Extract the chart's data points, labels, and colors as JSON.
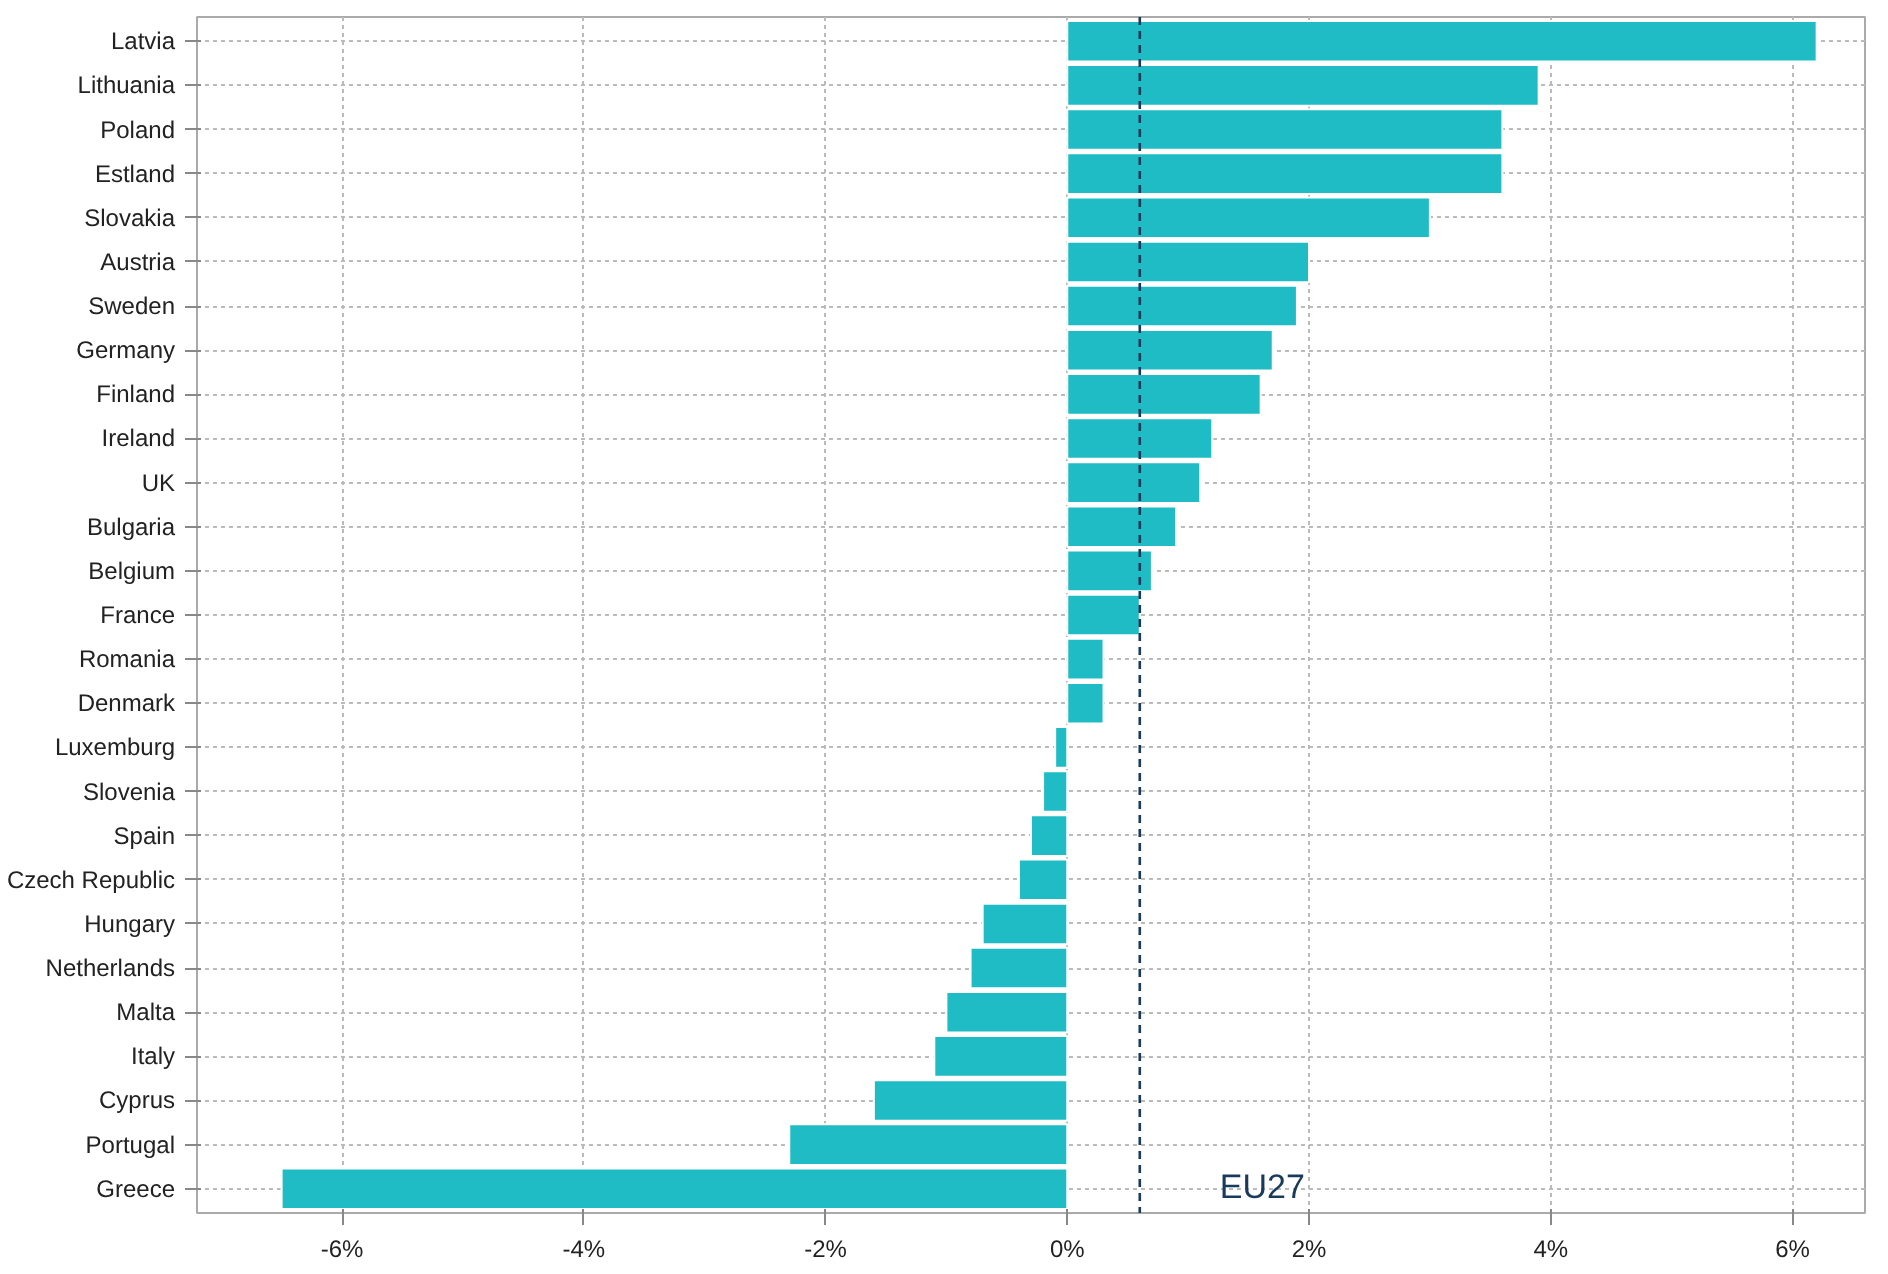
{
  "chart_data": {
    "type": "bar",
    "orientation": "horizontal",
    "categories": [
      "Latvia",
      "Lithuania",
      "Poland",
      "Estland",
      "Slovakia",
      "Austria",
      "Sweden",
      "Germany",
      "Finland",
      "Ireland",
      "UK",
      "Bulgaria",
      "Belgium",
      "France",
      "Romania",
      "Denmark",
      "Luxemburg",
      "Slovenia",
      "Spain",
      "Czech Republic",
      "Hungary",
      "Netherlands",
      "Malta",
      "Italy",
      "Cyprus",
      "Portugal",
      "Greece"
    ],
    "values": [
      6.2,
      3.9,
      3.6,
      3.6,
      3.0,
      2.0,
      1.9,
      1.7,
      1.6,
      1.2,
      1.1,
      0.9,
      0.7,
      0.6,
      0.3,
      0.3,
      -0.1,
      -0.2,
      -0.3,
      -0.4,
      -0.7,
      -0.8,
      -1.0,
      -1.1,
      -1.6,
      -2.3,
      -6.5
    ],
    "color": "#1fbcc5",
    "xlim": [
      -7.2,
      6.6
    ],
    "xticks": [
      {
        "value": -6,
        "label": "-6%"
      },
      {
        "value": -4,
        "label": "-4%"
      },
      {
        "value": -2,
        "label": "-2%"
      },
      {
        "value": 0,
        "label": "0%"
      },
      {
        "value": 2,
        "label": "2%"
      },
      {
        "value": 4,
        "label": "4%"
      },
      {
        "value": 6,
        "label": "6%"
      }
    ],
    "ref_lines": [
      {
        "axis": "x",
        "value": 0.6,
        "label": "EU27",
        "color": "#1a3a5c",
        "line_style": "dashed"
      }
    ],
    "grid": true
  }
}
